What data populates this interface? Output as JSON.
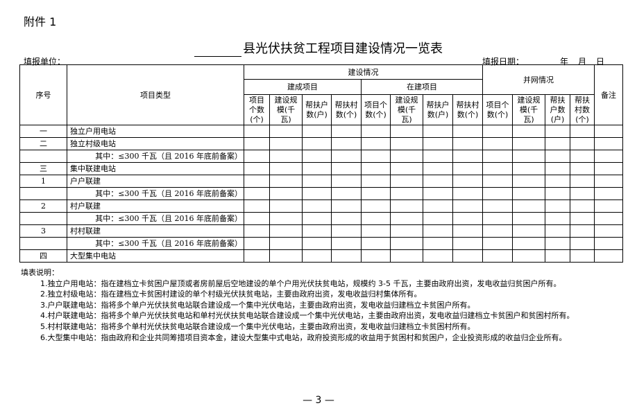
{
  "attachment_label": "附件 1",
  "title": "县光伏扶贫工程项目建设情况一览表",
  "fill_unit_label": "填报单位：",
  "fill_date": {
    "label": "填报日期：",
    "year": "年",
    "month": "月",
    "day": "日"
  },
  "table": {
    "headers": {
      "seq": "序号",
      "type": "项目类型",
      "construction": "建设情况",
      "completed": "建成项目",
      "in_progress": "在建项目",
      "grid": "并网情况",
      "remark": "备注",
      "sub_columns": [
        "项目个数(个)",
        "建设规模(千瓦)",
        "帮扶户数(户)",
        "帮扶村数(个)"
      ]
    },
    "rows": [
      {
        "seq": "一",
        "type": "独立户用电站",
        "sub": false
      },
      {
        "seq": "二",
        "type": "独立村级电站",
        "sub": false
      },
      {
        "seq": "",
        "type": "其中：≤300 千瓦（且 2016 年底前备案）",
        "sub": true
      },
      {
        "seq": "三",
        "type": "集中联建电站",
        "sub": false
      },
      {
        "seq": "1",
        "type": "户户联建",
        "sub": false
      },
      {
        "seq": "",
        "type": "其中：≤300 千瓦（且 2016 年底前备案）",
        "sub": true
      },
      {
        "seq": "2",
        "type": "村户联建",
        "sub": false
      },
      {
        "seq": "",
        "type": "其中：≤300 千瓦（且 2016 年底前备案）",
        "sub": true
      },
      {
        "seq": "3",
        "type": "村村联建",
        "sub": false
      },
      {
        "seq": "",
        "type": "其中：≤300 千瓦（且 2016 年底前备案）",
        "sub": true
      },
      {
        "seq": "四",
        "type": "大型集中电站",
        "sub": false
      }
    ]
  },
  "notes": {
    "heading": "填表说明：",
    "items": [
      "1.独立户用电站：指在建档立卡贫困户屋顶或者房前屋后空地建设的单个户用光伏扶贫电站，规模约 3-5 千瓦，主要由政府出资，发电收益归贫困户所有。",
      "2.独立村级电站：指在建档立卡贫困村建设的单个村级光伏扶贫电站，主要由政府出资，发电收益归村集体所有。",
      "3.户户联建电站：指将多个单户光伏扶贫电站联合建设成一个集中光伏电站，主要由政府出资，发电收益归建档立卡贫困户所有。",
      "4.村户联建电站：指将多个单户光伏扶贫电站和单村光伏扶贫电站联合建设成一个集中光伏电站，主要由政府出资，发电收益归建档立卡贫困户和贫困村所有。",
      "5.村村联建电站：指将多个单村光伏扶贫电站联合建设成一个集中光伏电站，主要由政府出资，发电收益归建档立卡贫困村所有。",
      "6.大型集中电站：指由政府和企业共同筹措项目资本金，建设大型集中式电站，政府投资形成的收益用于贫困村和贫困户，企业投资形成的收益归企业所有。"
    ]
  },
  "page_number": "— 3 —"
}
